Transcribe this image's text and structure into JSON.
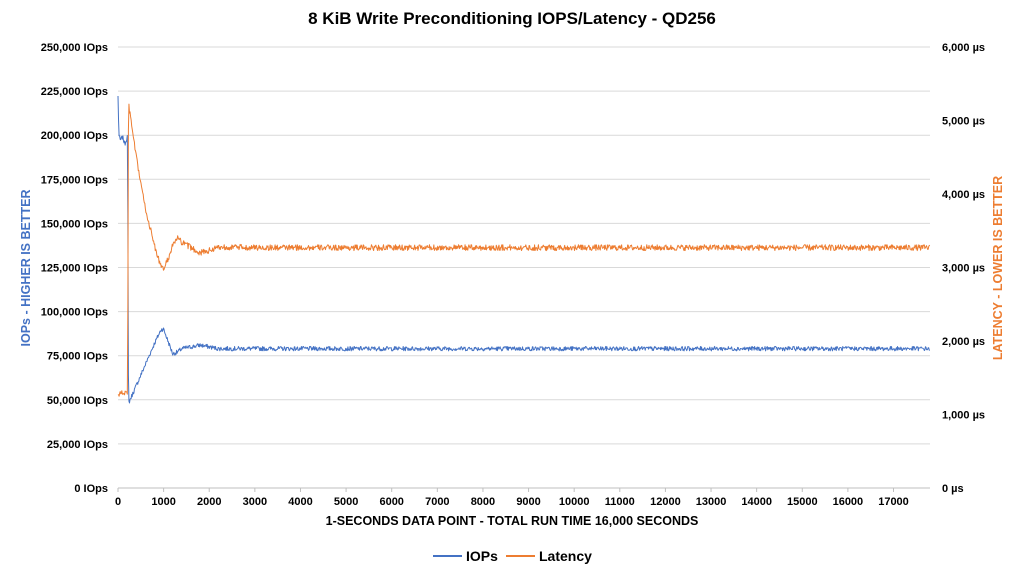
{
  "chart_data": {
    "type": "line",
    "title": "8 KiB Write Preconditioning IOPS/Latency - QD256",
    "xlabel": "1-SECONDS DATA POINT - TOTAL RUN TIME 16,000 SECONDS",
    "ylabel_left": "IOPs - HIGHER IS BETTER",
    "ylabel_right": "LATENCY - LOWER IS BETTER",
    "xlim": [
      0,
      17800
    ],
    "ylim_left": [
      0,
      250000
    ],
    "ylim_right": [
      0,
      6000
    ],
    "x_ticks": [
      "0",
      "1000",
      "2000",
      "3000",
      "4000",
      "5000",
      "6000",
      "7000",
      "8000",
      "9000",
      "10000",
      "11000",
      "12000",
      "13000",
      "14000",
      "15000",
      "16000",
      "17000"
    ],
    "y_left_ticks": [
      "0 IOps",
      "25,000 IOps",
      "50,000 IOps",
      "75,000 IOps",
      "100,000 IOps",
      "125,000 IOps",
      "150,000 IOps",
      "175,000 IOps",
      "200,000 IOps",
      "225,000 IOps",
      "250,000 IOps"
    ],
    "y_right_ticks": [
      "0 µs",
      "1,000 µs",
      "2,000 µs",
      "3,000 µs",
      "4,000 µs",
      "5,000 µs",
      "6,000 µs"
    ],
    "grid": "horizontal",
    "legend_position": "bottom",
    "series": [
      {
        "name": "IOPs",
        "axis": "left",
        "color": "#4472C4",
        "x": [
          0,
          20,
          50,
          100,
          150,
          200,
          210,
          230,
          400,
          600,
          800,
          950,
          1000,
          1100,
          1200,
          1300,
          1400,
          1600,
          1800,
          2000,
          2200,
          3000,
          5000,
          8000,
          11000,
          14000,
          17000,
          17800
        ],
        "y": [
          222000,
          200000,
          197000,
          199000,
          195000,
          199000,
          200000,
          48000,
          58000,
          70000,
          82000,
          90000,
          90000,
          83000,
          76000,
          77000,
          79000,
          80000,
          81000,
          80000,
          79000,
          79000,
          79000,
          79000,
          79000,
          79000,
          79000,
          79000
        ]
      },
      {
        "name": "Latency",
        "axis": "right",
        "color": "#ED7D31",
        "x": [
          0,
          50,
          100,
          150,
          200,
          210,
          230,
          400,
          600,
          800,
          950,
          1000,
          1100,
          1200,
          1300,
          1400,
          1600,
          1800,
          2000,
          2200,
          3000,
          5000,
          8000,
          11000,
          14000,
          17000,
          17800
        ],
        "y": [
          1270,
          1280,
          1300,
          1290,
          1300,
          1290,
          5230,
          4500,
          3800,
          3300,
          2990,
          2980,
          3120,
          3300,
          3400,
          3340,
          3270,
          3200,
          3230,
          3280,
          3270,
          3270,
          3270,
          3270,
          3270,
          3270,
          3270
        ]
      }
    ]
  }
}
